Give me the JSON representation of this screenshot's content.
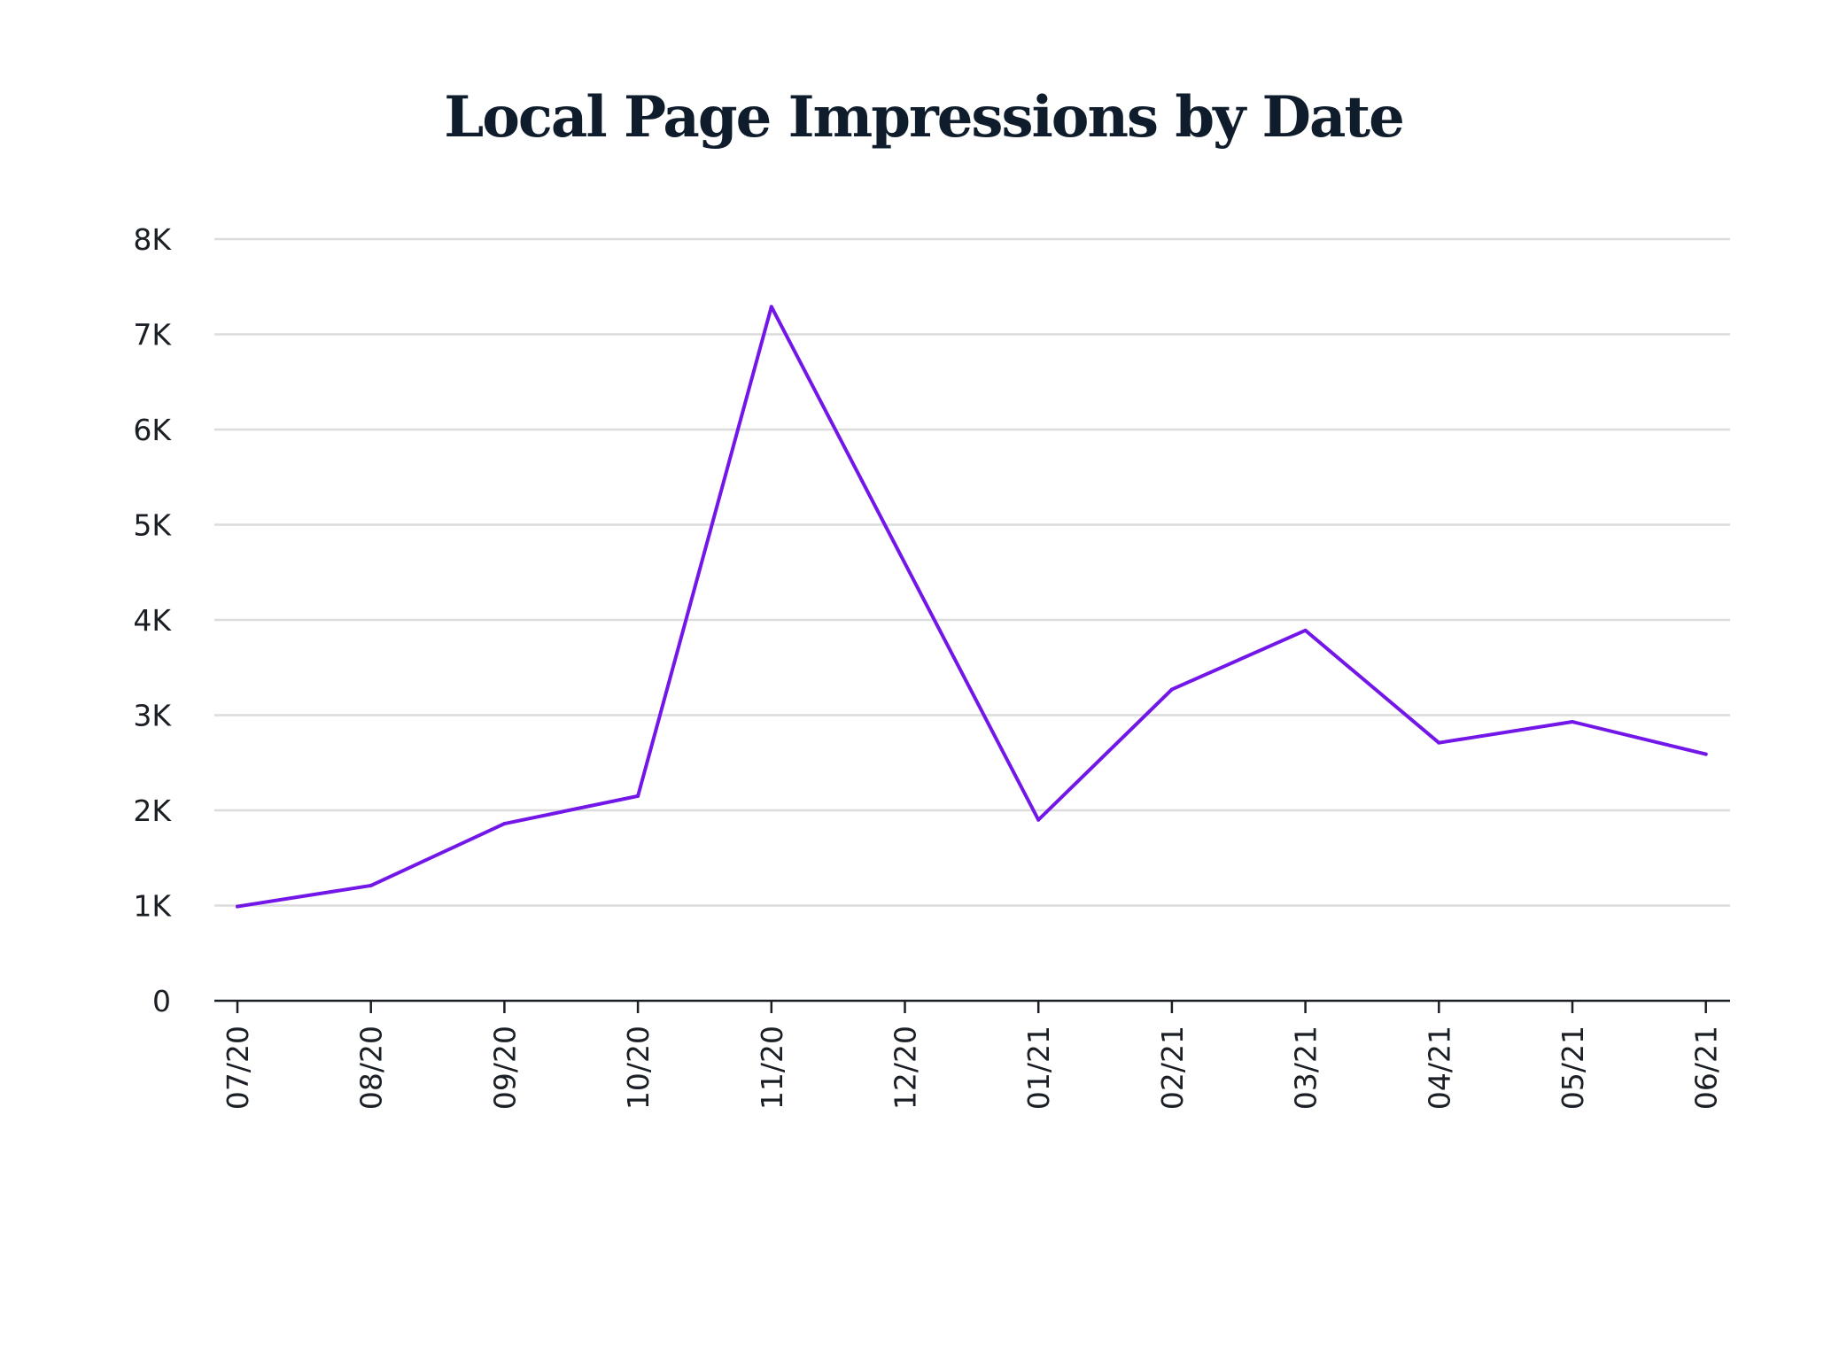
{
  "chart_data": {
    "type": "line",
    "title": "Local Page Impressions by Date",
    "xlabel": "",
    "ylabel": "",
    "categories": [
      "07/20",
      "08/20",
      "09/20",
      "10/20",
      "11/20",
      "12/20",
      "01/21",
      "02/21",
      "03/21",
      "04/21",
      "05/21",
      "06/21"
    ],
    "series": [
      {
        "points": [
          {
            "x": "07/20",
            "y": 990
          },
          {
            "x": "08/20",
            "y": 1210
          },
          {
            "x": "09/20",
            "y": 1860
          },
          {
            "x": "10/20",
            "y": 2150
          },
          {
            "x": "11/20",
            "y": 7290
          },
          {
            "x": "01/21",
            "y": 1900
          },
          {
            "x": "02/21",
            "y": 3270
          },
          {
            "x": "03/21",
            "y": 3890
          },
          {
            "x": "04/21",
            "y": 2710
          },
          {
            "x": "05/21",
            "y": 2930
          },
          {
            "x": "06/21",
            "y": 2590
          }
        ]
      }
    ],
    "y_ticks": [
      0,
      1000,
      2000,
      3000,
      4000,
      5000,
      6000,
      7000,
      8000
    ],
    "y_tick_labels": [
      "0",
      "1K",
      "2K",
      "3K",
      "4K",
      "5K",
      "6K",
      "7K",
      "8K"
    ],
    "ylim": [
      0,
      8000
    ],
    "grid": true,
    "legend": "none",
    "line_color": "#7316e8"
  }
}
